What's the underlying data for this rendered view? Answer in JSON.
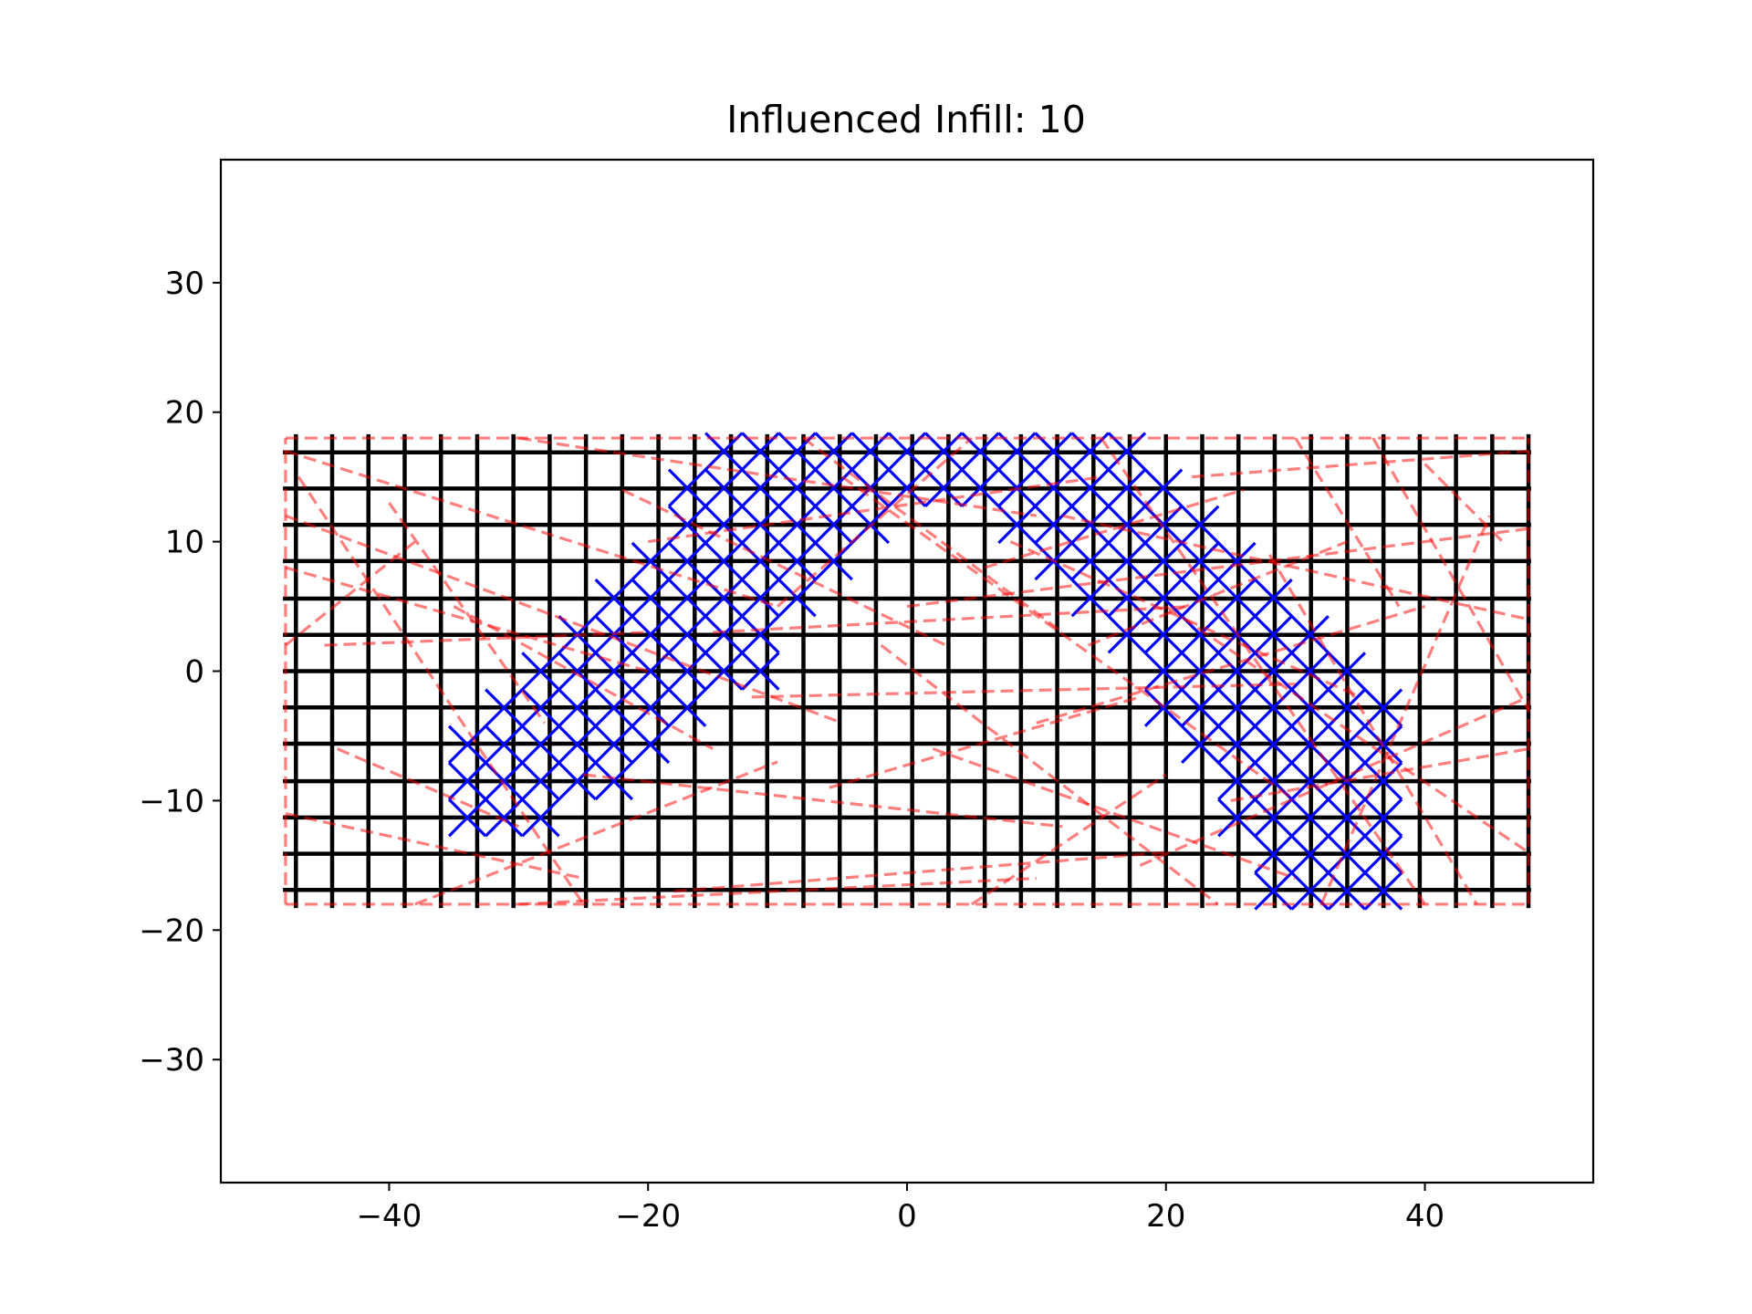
{
  "chart_data": {
    "type": "line",
    "title": "Influenced Infill: 10",
    "xlabel": "",
    "ylabel": "",
    "xlim": [
      -53,
      53
    ],
    "ylim": [
      -39.5,
      39.5
    ],
    "xticks": [
      -40,
      -20,
      0,
      20,
      40
    ],
    "yticks": [
      -30,
      -20,
      -10,
      0,
      10,
      20,
      30
    ],
    "xtick_labels": [
      "−40",
      "−20",
      "0",
      "20",
      "40"
    ],
    "ytick_labels": [
      "−30",
      "−20",
      "−10",
      "0",
      "10",
      "20",
      "30"
    ],
    "grid": false,
    "legend": "none",
    "colors": {
      "grid_lines": "#000000",
      "infill_lines": "#0000ff",
      "path_lines": "#ff0000"
    },
    "region": {
      "x": [
        -48.2,
        48.2
      ],
      "y": [
        -18.3,
        18.3
      ]
    },
    "series": [
      {
        "style": "solid black vertical lines",
        "x": [
          -47.2,
          -44.4,
          -41.6,
          -38.8,
          -36.0,
          -33.2,
          -30.4,
          -27.6,
          -24.8,
          -22.0,
          -19.2,
          -16.4,
          -13.6,
          -10.8,
          -8.0,
          -5.2,
          -2.4,
          0.4,
          3.2,
          6.0,
          8.8,
          11.6,
          14.4,
          17.2,
          20.0,
          22.8,
          25.6,
          28.4,
          31.2,
          34.0,
          36.8,
          39.6,
          42.4,
          45.2,
          48.0
        ]
      },
      {
        "style": "solid black horizontal lines",
        "y": [
          16.9,
          14.1,
          11.3,
          8.5,
          5.6,
          2.8,
          0.0,
          -2.8,
          -5.6,
          -8.5,
          -11.3,
          -14.1,
          -16.9
        ]
      },
      {
        "style": "solid blue diagonal infill",
        "cells": [
          [
            -30,
            -8,
            -17,
            3
          ],
          [
            -28,
            -5,
            -15,
            4
          ],
          [
            -25,
            -3,
            -13,
            6
          ],
          [
            -22,
            0,
            -11,
            8
          ],
          [
            -19,
            3,
            -9,
            11
          ],
          [
            -17,
            6,
            -6,
            14
          ],
          [
            -14,
            11,
            -5,
            17
          ],
          [
            -11,
            14,
            -3,
            18
          ],
          [
            -8,
            17,
            1,
            18
          ],
          [
            -5,
            18,
            6,
            18
          ],
          [
            -2,
            18,
            11,
            18
          ],
          [
            1,
            18,
            14,
            18
          ],
          [
            4,
            18,
            17,
            12
          ],
          [
            7,
            18,
            19,
            8
          ],
          [
            10,
            17,
            22,
            4
          ],
          [
            13,
            14,
            25,
            2
          ],
          [
            15,
            11,
            28,
            0
          ],
          [
            18,
            8,
            31,
            -3
          ],
          [
            20,
            5,
            33,
            -6
          ],
          [
            22,
            2,
            33,
            -9
          ],
          [
            24,
            -1,
            33,
            -12
          ],
          [
            26,
            -4,
            33,
            -15
          ]
        ]
      },
      {
        "style": "dashed red translucent path lines",
        "segments": [
          [
            -48,
            18,
            48,
            18
          ],
          [
            -48,
            -18,
            48,
            -18
          ],
          [
            -48,
            -18,
            -48,
            18
          ],
          [
            48,
            -18,
            48,
            18
          ],
          [
            -48,
            17,
            -10,
            5
          ],
          [
            -48,
            12,
            -5,
            -4
          ],
          [
            -48,
            8,
            -20,
            0
          ],
          [
            -48,
            -11,
            -25,
            -16
          ],
          [
            -47,
            15,
            -25,
            -18
          ],
          [
            -40,
            13,
            -28,
            -4
          ],
          [
            -45,
            2,
            -20,
            3
          ],
          [
            -30,
            18,
            10,
            12
          ],
          [
            -30,
            -18,
            10,
            -16
          ],
          [
            -18,
            -17,
            20,
            -14
          ],
          [
            -15,
            3,
            22,
            5
          ],
          [
            -12,
            -2,
            30,
            -1
          ],
          [
            -10,
            5,
            5,
            18
          ],
          [
            -8,
            18,
            12,
            3
          ],
          [
            -5,
            15,
            30,
            -10
          ],
          [
            -2,
            2,
            24,
            -18
          ],
          [
            0,
            5,
            48,
            11
          ],
          [
            5,
            -18,
            20,
            -8
          ],
          [
            8,
            10,
            35,
            -2
          ],
          [
            10,
            -4,
            40,
            5
          ],
          [
            12,
            12,
            48,
            4
          ],
          [
            15,
            18,
            40,
            -18
          ],
          [
            18,
            -15,
            48,
            -2
          ],
          [
            20,
            5,
            48,
            -14
          ],
          [
            22,
            15,
            48,
            17
          ],
          [
            25,
            -10,
            48,
            -6
          ],
          [
            28,
            9,
            44,
            -18
          ],
          [
            30,
            18,
            38,
            5
          ],
          [
            32,
            -18,
            45,
            12
          ],
          [
            36,
            18,
            48,
            -3
          ],
          [
            -25,
            -8,
            12,
            -12
          ],
          [
            -20,
            10,
            15,
            15
          ],
          [
            -38,
            -18,
            -10,
            -7
          ],
          [
            -35,
            5,
            -15,
            -6
          ],
          [
            -22,
            14,
            3,
            2
          ],
          [
            2,
            -6,
            30,
            -16
          ],
          [
            -6,
            -9,
            18,
            -2
          ],
          [
            14,
            2,
            34,
            10
          ],
          [
            -44,
            -6,
            -30,
            -12
          ],
          [
            40,
            16,
            46,
            10
          ],
          [
            -48,
            2,
            -38,
            10
          ],
          [
            6,
            8,
            26,
            14
          ]
        ]
      }
    ]
  }
}
